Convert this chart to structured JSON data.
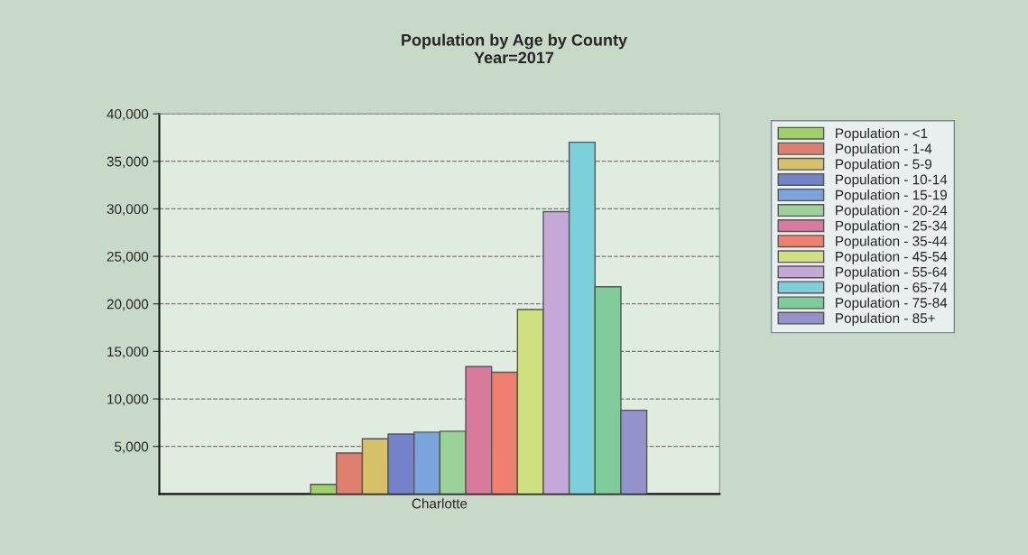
{
  "chart_data": {
    "type": "bar",
    "title": "Population by Age by County\nYear=2017",
    "categories": [
      "Charlotte"
    ],
    "series": [
      {
        "name": "Population - <1",
        "color": "#9fd06a",
        "values": [
          1000
        ]
      },
      {
        "name": "Population - 1-4",
        "color": "#e07f70",
        "values": [
          4300
        ]
      },
      {
        "name": "Population - 5-9",
        "color": "#d6c16a",
        "values": [
          5800
        ]
      },
      {
        "name": "Population - 10-14",
        "color": "#7482cc",
        "values": [
          6300
        ]
      },
      {
        "name": "Population - 15-19",
        "color": "#7ba3dc",
        "values": [
          6500
        ]
      },
      {
        "name": "Population - 20-24",
        "color": "#9dd19a",
        "values": [
          6600
        ]
      },
      {
        "name": "Population - 25-34",
        "color": "#d9799e",
        "values": [
          13400
        ]
      },
      {
        "name": "Population - 35-44",
        "color": "#ef8070",
        "values": [
          12800
        ]
      },
      {
        "name": "Population - 45-54",
        "color": "#cfe07e",
        "values": [
          19400
        ]
      },
      {
        "name": "Population - 55-64",
        "color": "#c6a8d8",
        "values": [
          29700
        ]
      },
      {
        "name": "Population - 65-74",
        "color": "#7cd0dc",
        "values": [
          37000
        ]
      },
      {
        "name": "Population - 75-84",
        "color": "#7fcb99",
        "values": [
          21800
        ]
      },
      {
        "name": "Population - 85+",
        "color": "#9491cc",
        "values": [
          8800
        ]
      }
    ],
    "ylim": [
      0,
      40000
    ],
    "yticks": [
      {
        "value": 5000,
        "label": "5,000"
      },
      {
        "value": 10000,
        "label": "10,000"
      },
      {
        "value": 15000,
        "label": "15,000"
      },
      {
        "value": 20000,
        "label": "20,000"
      },
      {
        "value": 25000,
        "label": "25,000"
      },
      {
        "value": 30000,
        "label": "30,000"
      },
      {
        "value": 35000,
        "label": "35,000"
      },
      {
        "value": 40000,
        "label": "40,000"
      }
    ],
    "grid": "y",
    "legend": "right"
  }
}
